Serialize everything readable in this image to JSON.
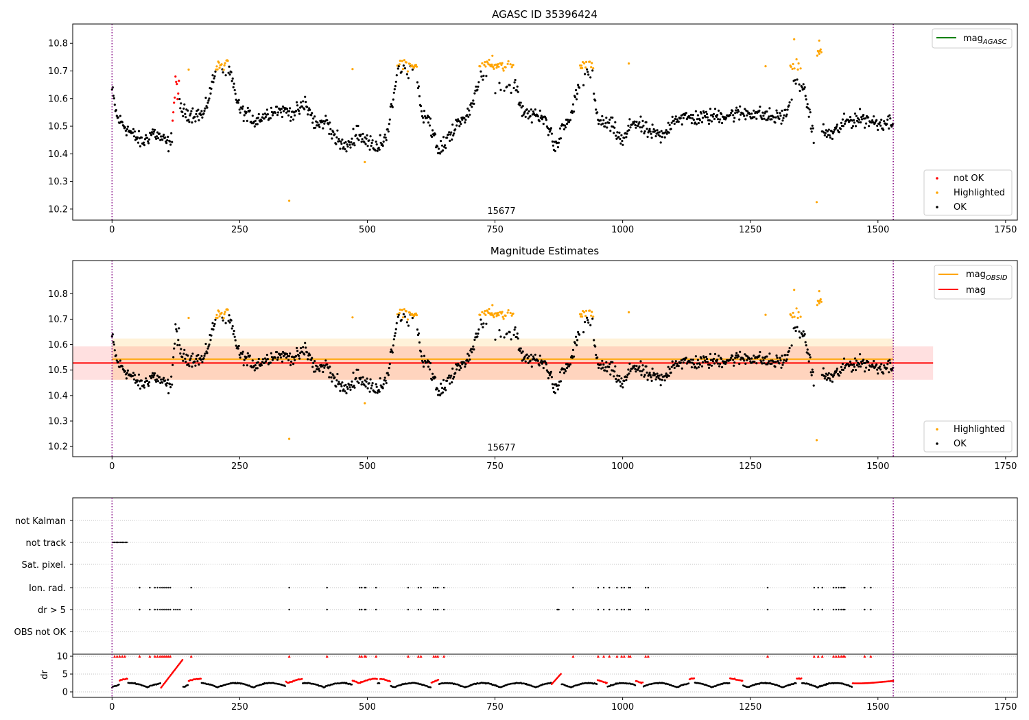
{
  "figure": {
    "background": "#ffffff"
  },
  "chart_data": [
    {
      "id": "top",
      "type": "scatter",
      "title": "AGASC ID 35396424",
      "xlim": [
        -77,
        1773
      ],
      "ylim": [
        10.16,
        10.87
      ],
      "xticks": [
        0,
        250,
        500,
        750,
        1000,
        1250,
        1500,
        1750
      ],
      "yticks": [
        10.2,
        10.3,
        10.4,
        10.5,
        10.6,
        10.7,
        10.8
      ],
      "vlines": [
        {
          "x": 0,
          "color": "#800080"
        },
        {
          "x": 1530,
          "color": "#800080"
        }
      ],
      "annotations": [
        {
          "text": "15677",
          "x": 765,
          "y": 10.175
        }
      ],
      "legend_top": {
        "position": "upper right",
        "entries": [
          {
            "label": "mag",
            "sub": "AGASC",
            "color": "#008000"
          }
        ]
      },
      "legend_bottom": {
        "position": "lower right",
        "entries": [
          {
            "label": "not OK",
            "color": "#ff0000"
          },
          {
            "label": "Highlighted",
            "color": "#ffa500"
          },
          {
            "label": "OK",
            "color": "#000000"
          }
        ]
      },
      "grid": false
    },
    {
      "id": "mid",
      "type": "scatter",
      "title": "Magnitude Estimates",
      "xlim": [
        -77,
        1773
      ],
      "ylim": [
        10.16,
        10.93
      ],
      "xticks": [
        0,
        250,
        500,
        750,
        1000,
        1250,
        1500,
        1750
      ],
      "yticks": [
        10.2,
        10.3,
        10.4,
        10.5,
        10.6,
        10.7,
        10.8
      ],
      "vlines": [
        {
          "x": 0,
          "color": "#800080"
        },
        {
          "x": 1530,
          "color": "#800080"
        }
      ],
      "annotations": [
        {
          "text": "15677",
          "x": 765,
          "y": 10.175
        }
      ],
      "bands": [
        {
          "x0": 0,
          "x1": 1530,
          "y0": 10.462,
          "y1": 10.624,
          "color": "#ffa500",
          "opacity": 0.15
        },
        {
          "x0": -77,
          "x1": 1608,
          "y0": 10.462,
          "y1": 10.593,
          "color": "#ff0000",
          "opacity": 0.12
        }
      ],
      "hlines": [
        {
          "name": "mag_obsid",
          "x0": 0,
          "x1": 1530,
          "y": 10.543,
          "color": "#ffa500"
        },
        {
          "name": "mag",
          "x0": -77,
          "x1": 1608,
          "y": 10.528,
          "color": "#ff0000"
        }
      ],
      "legend_top": {
        "position": "upper right",
        "entries": [
          {
            "label": "mag",
            "sub": "OBSID",
            "color": "#ffa500"
          },
          {
            "label": "mag",
            "color": "#ff0000"
          }
        ]
      },
      "legend_bottom": {
        "position": "lower right",
        "entries": [
          {
            "label": "Highlighted",
            "color": "#ffa500"
          },
          {
            "label": "OK",
            "color": "#000000"
          }
        ]
      },
      "grid": false
    },
    {
      "id": "flags",
      "type": "scatter",
      "categories": [
        "not Kalman",
        "not track",
        "Sat. pixel.",
        "Ion. rad.",
        "dr > 5",
        "OBS not OK"
      ],
      "xlim": [
        -77,
        1773
      ],
      "grid": true,
      "points": {
        "not track": [
          2,
          5,
          8,
          11,
          14,
          17,
          20,
          23,
          26,
          29
        ],
        "Ion. rad.": [
          54,
          74,
          84,
          89,
          94,
          98,
          102,
          106,
          110,
          114,
          155,
          347,
          421,
          485,
          489,
          495,
          497,
          517,
          580,
          600,
          605,
          630,
          634,
          638,
          650,
          903,
          952,
          963,
          974,
          989,
          998,
          1003,
          1012,
          1015,
          1045,
          1050,
          1284,
          1375,
          1383,
          1391,
          1413,
          1418,
          1423,
          1428,
          1432,
          1435,
          1474,
          1486
        ],
        "dr > 5": [
          54,
          74,
          84,
          89,
          94,
          98,
          102,
          106,
          110,
          114,
          121,
          125,
          129,
          133,
          155,
          347,
          421,
          485,
          489,
          495,
          497,
          517,
          580,
          600,
          605,
          630,
          634,
          638,
          650,
          872,
          875,
          903,
          952,
          963,
          974,
          989,
          998,
          1003,
          1012,
          1015,
          1045,
          1050,
          1284,
          1375,
          1383,
          1391,
          1413,
          1418,
          1423,
          1428,
          1432,
          1435,
          1474,
          1486
        ]
      }
    },
    {
      "id": "dr",
      "type": "scatter",
      "ylabel": "dr",
      "xlim": [
        -77,
        1773
      ],
      "ylim": [
        0,
        10
      ],
      "yticks": [
        0,
        5,
        10
      ],
      "xticks": [
        0,
        250,
        500,
        750,
        1000,
        1250,
        1500,
        1750
      ],
      "grid": true,
      "flag_markers_at_10": [
        5,
        10,
        15,
        20,
        25,
        54,
        74,
        84,
        89,
        94,
        98,
        102,
        106,
        110,
        114,
        155,
        347,
        421,
        485,
        489,
        495,
        497,
        517,
        580,
        600,
        605,
        630,
        634,
        638,
        650,
        903,
        952,
        963,
        974,
        989,
        998,
        1003,
        1012,
        1015,
        1045,
        1050,
        1284,
        1375,
        1383,
        1391,
        1413,
        1418,
        1423,
        1428,
        1432,
        1435,
        1474,
        1486
      ],
      "red_segments": [
        [
          15,
          30
        ],
        [
          95,
          138
        ],
        [
          150,
          175
        ],
        [
          340,
          372
        ],
        [
          470,
          520
        ],
        [
          525,
          545
        ],
        [
          625,
          640
        ],
        [
          860,
          880
        ],
        [
          950,
          970
        ],
        [
          1025,
          1040
        ],
        [
          1130,
          1140
        ],
        [
          1210,
          1235
        ],
        [
          1340,
          1350
        ],
        [
          1450,
          1530
        ]
      ]
    }
  ]
}
